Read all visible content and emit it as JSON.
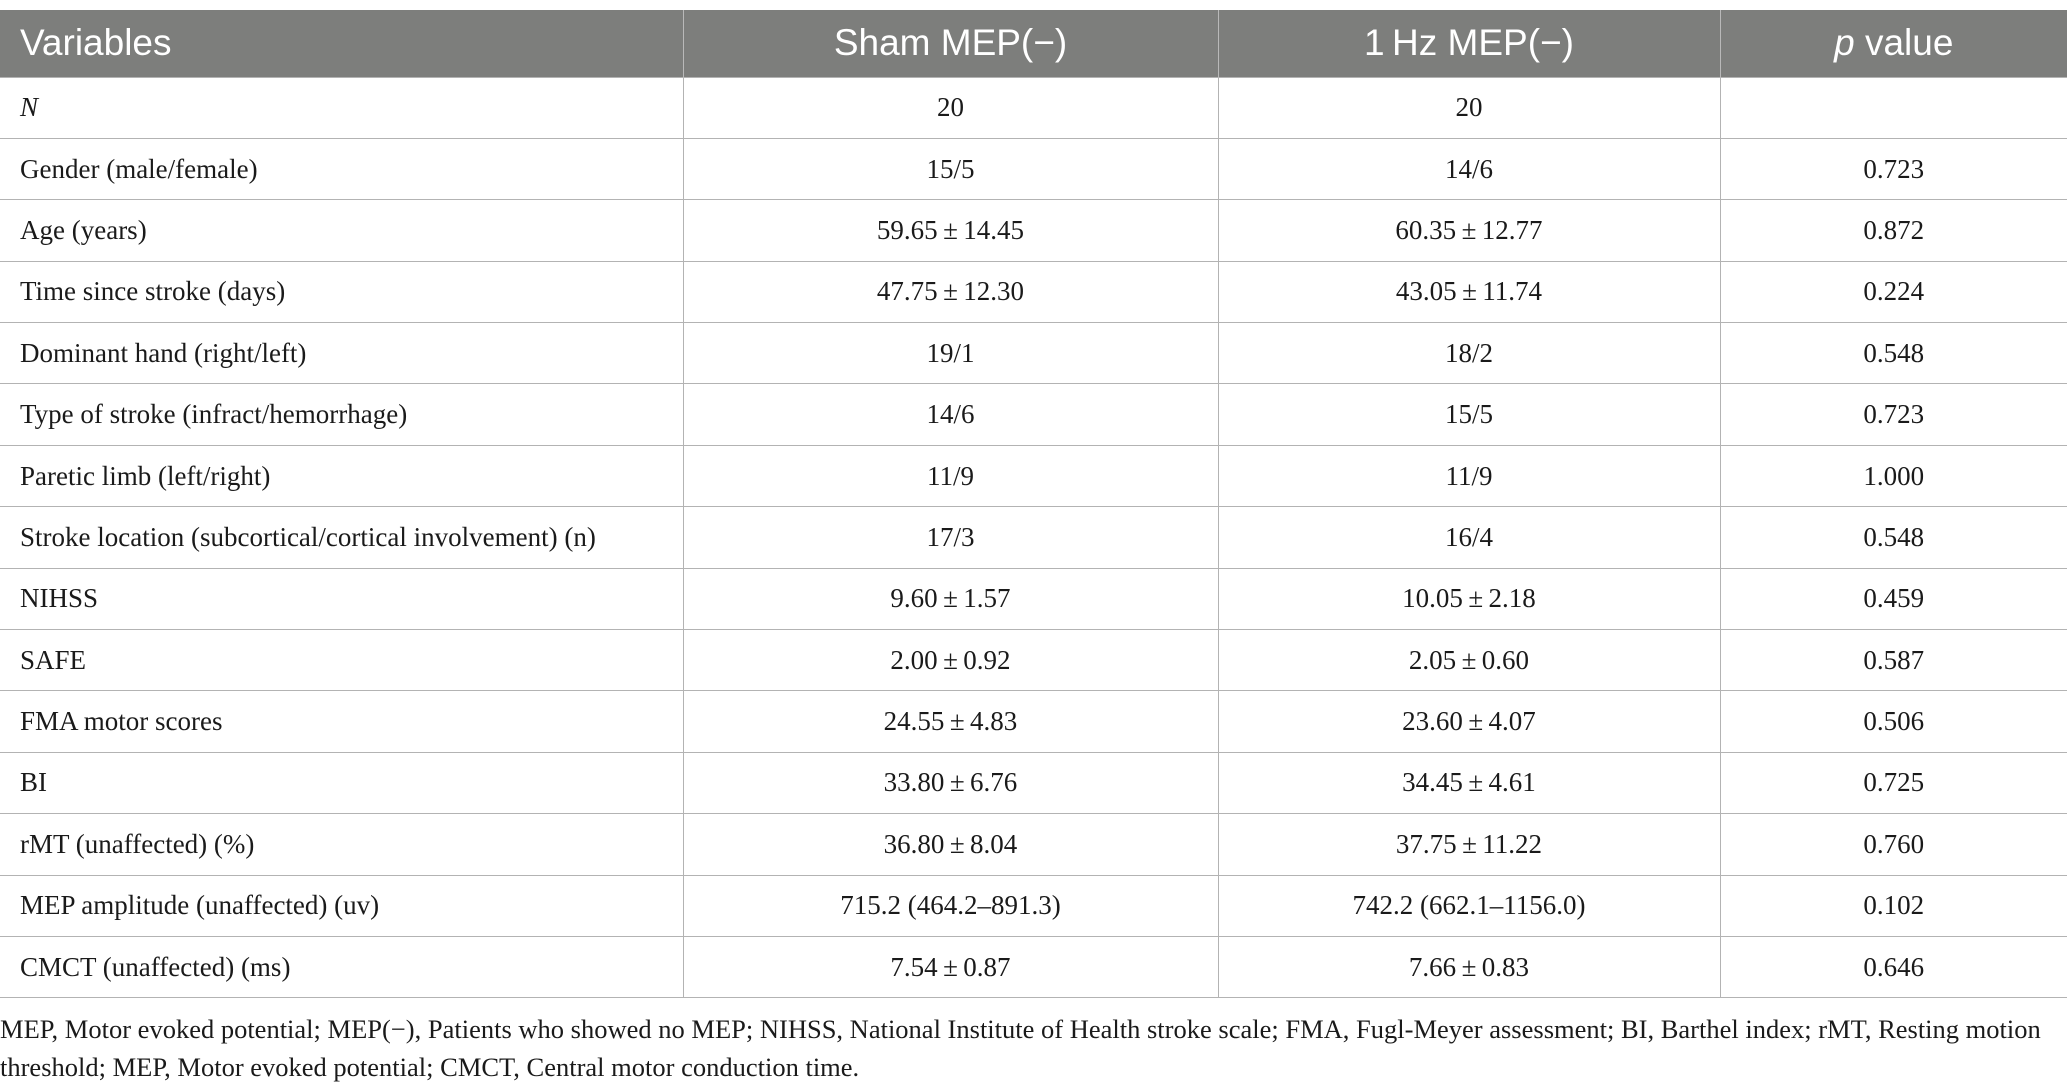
{
  "table": {
    "headers": {
      "variables": "Variables",
      "sham": "Sham MEP(−)",
      "hz": "1 Hz MEP(−)",
      "p_italic": "p",
      "p_rest": " value"
    },
    "rows": [
      {
        "label": "N",
        "sham": "20",
        "hz": "20",
        "p": ""
      },
      {
        "label": "Gender (male/female)",
        "sham": "15/5",
        "hz": "14/6",
        "p": "0.723"
      },
      {
        "label": "Age (years)",
        "sham": "59.65 ± 14.45",
        "hz": "60.35 ± 12.77",
        "p": "0.872"
      },
      {
        "label": "Time since stroke (days)",
        "sham": "47.75 ± 12.30",
        "hz": "43.05 ± 11.74",
        "p": "0.224"
      },
      {
        "label": "Dominant hand (right/left)",
        "sham": "19/1",
        "hz": "18/2",
        "p": "0.548"
      },
      {
        "label": "Type of stroke (infract/hemorrhage)",
        "sham": "14/6",
        "hz": "15/5",
        "p": "0.723"
      },
      {
        "label": "Paretic limb (left/right)",
        "sham": "11/9",
        "hz": "11/9",
        "p": "1.000"
      },
      {
        "label": "Stroke location (subcortical/cortical involvement) (n)",
        "sham": "17/3",
        "hz": "16/4",
        "p": "0.548"
      },
      {
        "label": "NIHSS",
        "sham": "9.60 ± 1.57",
        "hz": "10.05 ± 2.18",
        "p": "0.459"
      },
      {
        "label": "SAFE",
        "sham": "2.00 ± 0.92",
        "hz": "2.05 ± 0.60",
        "p": "0.587"
      },
      {
        "label": "FMA motor scores",
        "sham": "24.55 ± 4.83",
        "hz": "23.60 ± 4.07",
        "p": "0.506"
      },
      {
        "label": "BI",
        "sham": "33.80 ± 6.76",
        "hz": "34.45 ± 4.61",
        "p": "0.725"
      },
      {
        "label": "rMT (unaffected) (%)",
        "sham": "36.80 ± 8.04",
        "hz": "37.75 ± 11.22",
        "p": "0.760"
      },
      {
        "label": "MEP amplitude (unaffected) (uv)",
        "sham": "715.2 (464.2–891.3)",
        "hz": "742.2 (662.1–1156.0)",
        "p": "0.102"
      },
      {
        "label": "CMCT (unaffected) (ms)",
        "sham": "7.54 ± 0.87",
        "hz": "7.66 ± 0.83",
        "p": "0.646"
      }
    ]
  },
  "footnote": "MEP, Motor evoked potential; MEP(−), Patients who showed no MEP; NIHSS, National Institute of Health stroke scale; FMA, Fugl-Meyer assessment; BI, Barthel index; rMT, Resting motion threshold; MEP, Motor evoked potential; CMCT, Central motor conduction time.",
  "colors": {
    "header_bg": "#7d7e7c",
    "header_text": "#ffffff",
    "grid": "#b3b3b3"
  }
}
